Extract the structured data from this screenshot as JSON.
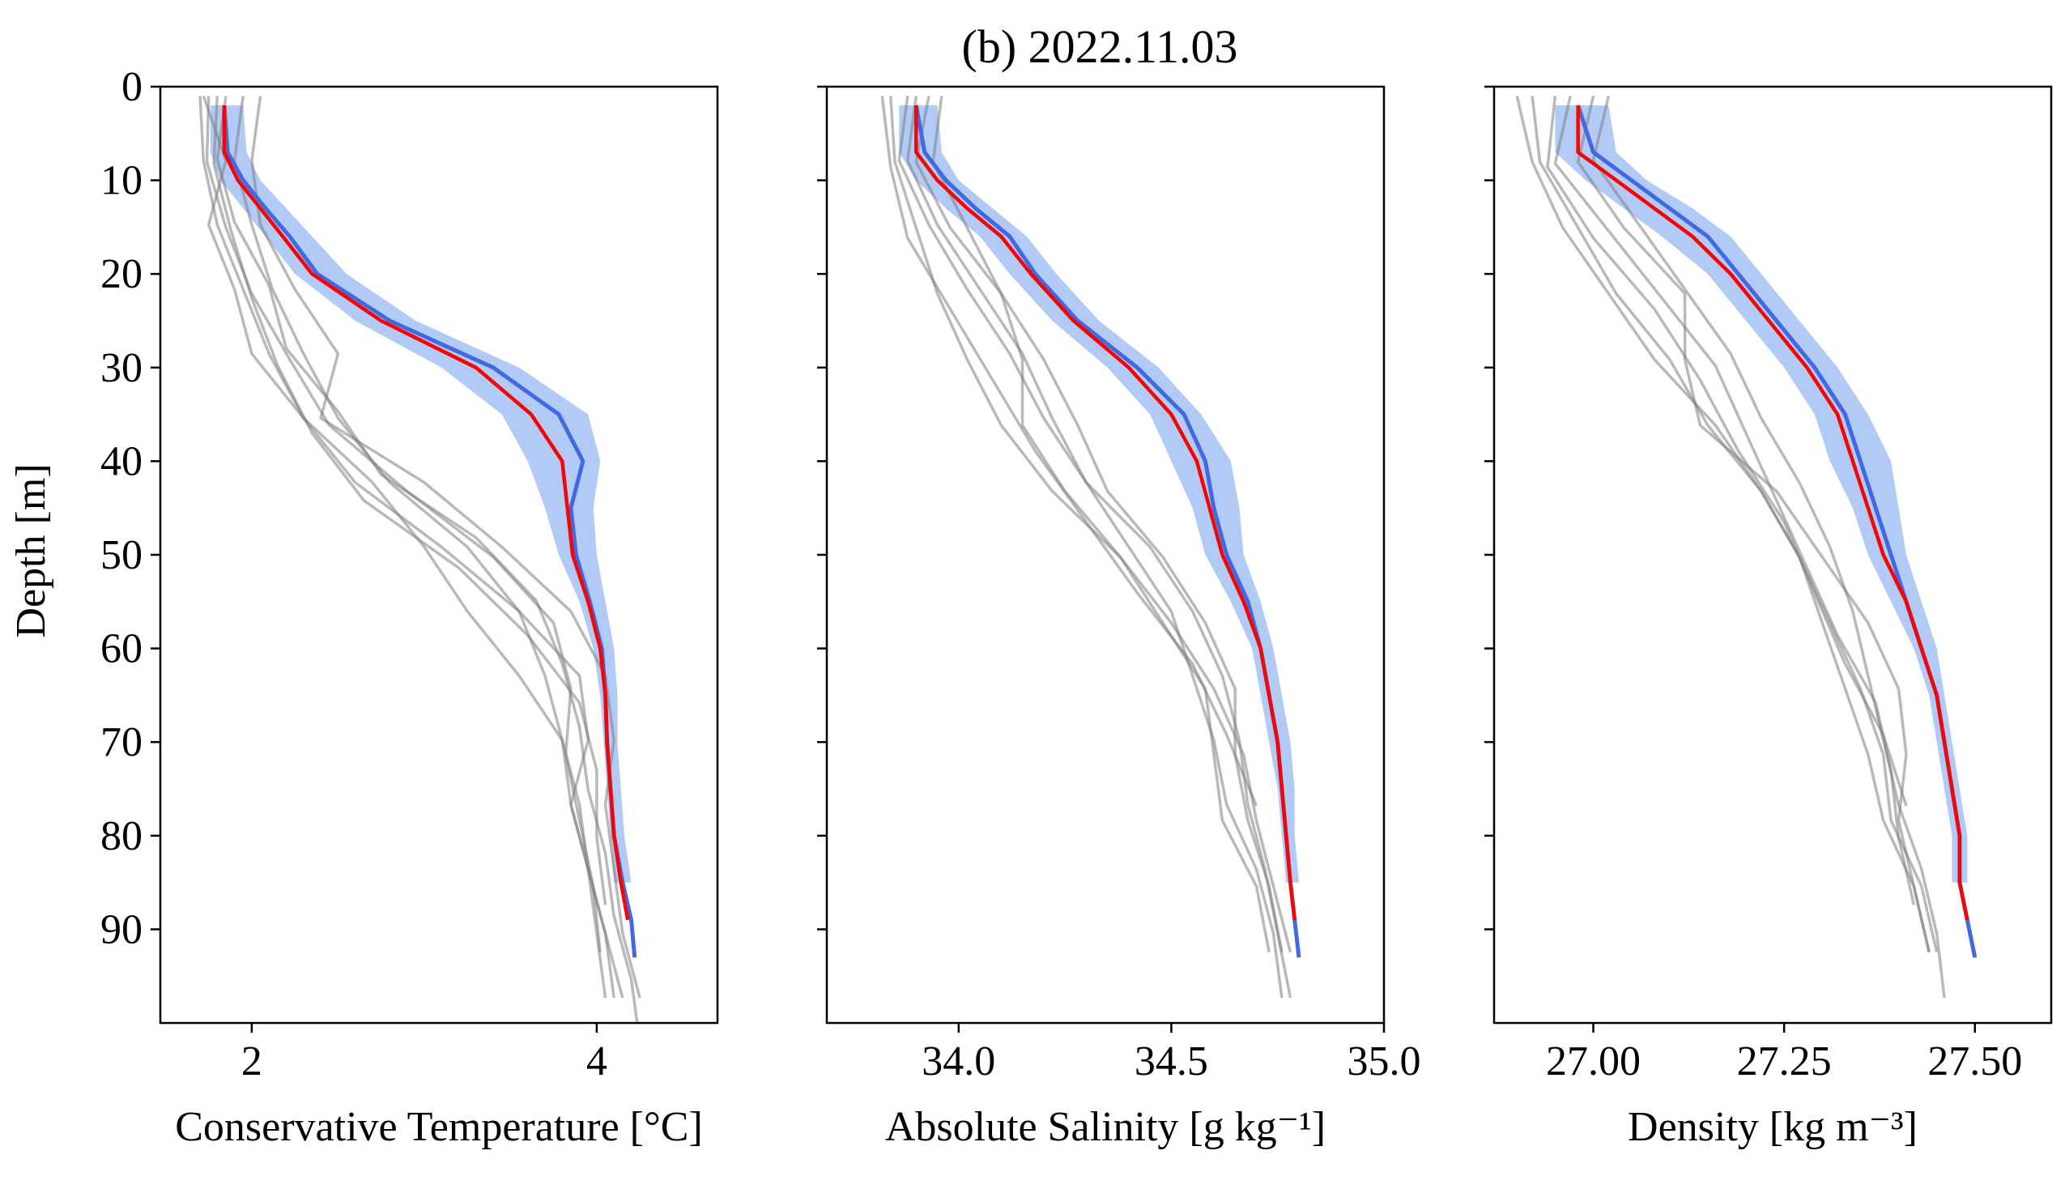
{
  "figure": {
    "title": "(b) 2022.11.03",
    "shared_ylabel": "Depth [m]"
  },
  "colors": {
    "mean_line": "#ff0000",
    "median_line": "#4169e1",
    "spread_fill": "#6495ed",
    "individual_profiles": "#808080",
    "axes": "#000000"
  },
  "chart_data": [
    {
      "type": "line",
      "panel": "temperature",
      "xlabel": "Conservative Temperature [°C]",
      "ylabel": "Depth [m]",
      "xlim": [
        1.47,
        4.7
      ],
      "ylim": [
        100,
        0
      ],
      "y_inverted": true,
      "xticks": [
        {
          "v": 2,
          "label": "2"
        },
        {
          "v": 4,
          "label": "4"
        }
      ],
      "yticks": [
        {
          "v": 0,
          "label": "0"
        },
        {
          "v": 10,
          "label": "10"
        },
        {
          "v": 20,
          "label": "20"
        },
        {
          "v": 30,
          "label": "30"
        },
        {
          "v": 40,
          "label": "40"
        },
        {
          "v": 50,
          "label": "50"
        },
        {
          "v": 60,
          "label": "60"
        },
        {
          "v": 70,
          "label": "70"
        },
        {
          "v": 80,
          "label": "80"
        },
        {
          "v": 90,
          "label": "90"
        }
      ],
      "depth": [
        2,
        7,
        10,
        13,
        16,
        20,
        25,
        30,
        35,
        40,
        45,
        50,
        55,
        60,
        65,
        70,
        75,
        80,
        85,
        89,
        93
      ],
      "mean": [
        1.84,
        1.84,
        1.92,
        2.05,
        2.18,
        2.35,
        2.75,
        3.3,
        3.62,
        3.8,
        3.83,
        3.86,
        3.95,
        4.02,
        4.05,
        4.06,
        4.08,
        4.1,
        4.14,
        4.18,
        null
      ],
      "median": [
        1.84,
        1.86,
        1.95,
        2.08,
        2.22,
        2.38,
        2.8,
        3.4,
        3.78,
        3.92,
        3.85,
        3.88,
        3.96,
        4.03,
        4.05,
        4.06,
        4.08,
        4.1,
        4.15,
        4.2,
        4.22
      ],
      "fill_low": [
        1.76,
        1.76,
        1.82,
        1.95,
        2.08,
        2.25,
        2.6,
        3.1,
        3.45,
        3.6,
        3.7,
        3.78,
        3.9,
        3.98,
        4.02,
        4.04,
        4.06,
        4.08,
        4.1
      ],
      "fill_high": [
        1.95,
        1.97,
        2.05,
        2.2,
        2.35,
        2.55,
        2.95,
        3.55,
        3.95,
        4.02,
        3.98,
        4.0,
        4.05,
        4.1,
        4.12,
        4.12,
        4.14,
        4.16,
        4.2
      ],
      "profiles": [
        {
          "d0": 1,
          "x": [
            1.7,
            1.72,
            1.8,
            1.95,
            2.1,
            2.3,
            2.6,
            3.1,
            3.55,
            3.9,
            3.95,
            3.85,
            3.95,
            4.0,
            4.05
          ]
        },
        {
          "d0": 1,
          "x": [
            1.75,
            1.74,
            1.85,
            2.0,
            2.22,
            2.45,
            2.9,
            3.4,
            3.75,
            3.85,
            3.82,
            3.9,
            3.98,
            4.02
          ]
        },
        {
          "d0": 1,
          "x": [
            1.85,
            1.8,
            1.9,
            2.1,
            2.2,
            2.5,
            2.75,
            3.3,
            3.65,
            3.8,
            3.9,
            3.95,
            4.05,
            4.1,
            4.2,
            4.25
          ]
        },
        {
          "d0": 1,
          "x": [
            1.95,
            1.9,
            2.0,
            2.12,
            2.3,
            2.5,
            2.8,
            3.25,
            3.55,
            3.7,
            3.8,
            3.9,
            3.95,
            4.05,
            4.15
          ]
        },
        {
          "d0": 1,
          "x": [
            2.05,
            2.0,
            2.05,
            2.25,
            2.5,
            2.4,
            3.0,
            3.45,
            3.85,
            4.05,
            4.1,
            4.05,
            4.1,
            4.15,
            4.25
          ]
        },
        {
          "d0": 1,
          "x": [
            1.72,
            1.85,
            1.75,
            1.9,
            2.0,
            2.3,
            2.7,
            3.0,
            3.25,
            3.55,
            3.8,
            3.85,
            3.95,
            4.05,
            4.1
          ]
        },
        {
          "d0": 1,
          "x": [
            1.8,
            1.78,
            1.88,
            2.0,
            2.15,
            2.35,
            2.65,
            3.2,
            3.6,
            3.9,
            4.0,
            4.0,
            4.05
          ]
        }
      ]
    },
    {
      "type": "line",
      "panel": "salinity",
      "xlabel": "Absolute Salinity [g kg⁻¹]",
      "ylabel": "",
      "xlim": [
        33.69,
        35.0
      ],
      "ylim": [
        100,
        0
      ],
      "y_inverted": true,
      "xticks": [
        {
          "v": 34.0,
          "label": "34.0"
        },
        {
          "v": 34.5,
          "label": "34.5"
        },
        {
          "v": 35.0,
          "label": "35.0"
        }
      ],
      "depth": [
        2,
        7,
        10,
        13,
        16,
        20,
        25,
        30,
        35,
        40,
        45,
        50,
        55,
        60,
        65,
        70,
        75,
        80,
        85,
        89,
        93
      ],
      "mean": [
        33.9,
        33.9,
        33.95,
        34.02,
        34.1,
        34.17,
        34.27,
        34.4,
        34.5,
        34.56,
        34.59,
        34.62,
        34.67,
        34.71,
        34.73,
        34.75,
        34.76,
        34.77,
        34.78,
        34.79,
        null
      ],
      "median": [
        33.9,
        33.92,
        33.97,
        34.04,
        34.12,
        34.18,
        34.28,
        34.42,
        34.53,
        34.58,
        34.6,
        34.63,
        34.68,
        34.71,
        34.73,
        34.75,
        34.76,
        34.77,
        34.78,
        34.79,
        34.8
      ],
      "fill_low": [
        33.86,
        33.86,
        33.9,
        33.97,
        34.05,
        34.12,
        34.22,
        34.35,
        34.45,
        34.5,
        34.55,
        34.58,
        34.64,
        34.69,
        34.71,
        34.73,
        34.75,
        34.76,
        34.77
      ],
      "fill_high": [
        33.95,
        33.96,
        34.0,
        34.08,
        34.16,
        34.23,
        34.33,
        34.47,
        34.57,
        34.64,
        34.66,
        34.67,
        34.71,
        34.74,
        34.76,
        34.78,
        34.79,
        34.79,
        34.8
      ],
      "profiles": [
        {
          "d0": 1,
          "x": [
            33.84,
            33.85,
            33.9,
            33.95,
            34.02,
            34.1,
            34.22,
            34.38,
            34.48,
            34.58,
            34.6,
            34.62,
            34.7,
            34.73
          ]
        },
        {
          "d0": 1,
          "x": [
            33.88,
            33.86,
            33.93,
            34.02,
            34.12,
            34.2,
            34.3,
            34.45,
            34.55,
            34.62,
            34.66,
            34.68,
            34.72,
            34.75,
            34.78
          ]
        },
        {
          "d0": 1,
          "x": [
            33.93,
            33.9,
            33.98,
            34.1,
            34.15,
            34.15,
            34.25,
            34.38,
            34.5,
            34.6,
            34.67,
            34.7,
            34.74,
            34.78
          ]
        },
        {
          "d0": 1,
          "x": [
            33.96,
            33.94,
            34.02,
            34.1,
            34.2,
            34.28,
            34.35,
            34.48,
            34.58,
            34.65,
            34.65,
            34.68,
            34.73,
            34.76
          ]
        },
        {
          "d0": 1,
          "x": [
            33.82,
            33.84,
            33.88,
            33.98,
            34.08,
            34.18,
            34.3,
            34.42,
            34.55,
            34.63,
            34.7
          ]
        },
        {
          "d0": 1,
          "x": [
            33.9,
            33.88,
            33.95,
            34.05,
            34.15,
            34.22,
            34.3,
            34.4,
            34.5,
            34.55,
            34.6,
            34.63,
            34.7,
            34.74,
            34.76
          ]
        }
      ]
    },
    {
      "type": "line",
      "panel": "density",
      "xlabel": "Density [kg m⁻³]",
      "ylabel": "",
      "xlim": [
        26.87,
        27.6
      ],
      "ylim": [
        100,
        0
      ],
      "y_inverted": true,
      "xticks": [
        {
          "v": 27.0,
          "label": "27.00"
        },
        {
          "v": 27.25,
          "label": "27.25"
        },
        {
          "v": 27.5,
          "label": "27.50"
        }
      ],
      "depth": [
        2,
        7,
        10,
        13,
        16,
        20,
        25,
        30,
        35,
        40,
        45,
        50,
        55,
        60,
        65,
        70,
        75,
        80,
        85,
        89,
        93
      ],
      "mean": [
        26.98,
        26.98,
        27.03,
        27.08,
        27.13,
        27.18,
        27.23,
        27.28,
        27.32,
        27.34,
        27.36,
        27.38,
        27.41,
        27.43,
        27.45,
        27.46,
        27.47,
        27.48,
        27.48,
        27.49,
        null
      ],
      "median": [
        26.98,
        27.0,
        27.05,
        27.1,
        27.15,
        27.19,
        27.24,
        27.29,
        27.33,
        27.35,
        27.37,
        27.39,
        27.41,
        27.43,
        27.45,
        27.46,
        27.47,
        27.48,
        27.48,
        27.49,
        27.5
      ],
      "fill_low": [
        26.95,
        26.95,
        26.99,
        27.04,
        27.09,
        27.15,
        27.2,
        27.25,
        27.29,
        27.31,
        27.34,
        27.36,
        27.39,
        27.42,
        27.44,
        27.45,
        27.46,
        27.47,
        27.47
      ],
      "fill_high": [
        27.02,
        27.03,
        27.07,
        27.13,
        27.18,
        27.22,
        27.27,
        27.32,
        27.36,
        27.39,
        27.4,
        27.41,
        27.43,
        27.45,
        27.46,
        27.47,
        27.48,
        27.49,
        27.49
      ],
      "profiles": [
        {
          "d0": 1,
          "x": [
            26.92,
            26.93,
            26.98,
            27.03,
            27.1,
            27.15,
            27.22,
            27.27,
            27.31,
            27.35,
            27.38,
            27.39,
            27.43,
            27.45
          ]
        },
        {
          "d0": 1,
          "x": [
            26.95,
            26.94,
            27.0,
            27.08,
            27.14,
            27.19,
            27.25,
            27.29,
            27.33,
            27.38,
            27.41
          ]
        },
        {
          "d0": 1,
          "x": [
            27.0,
            26.98,
            27.04,
            27.12,
            27.12,
            27.14,
            27.24,
            27.3,
            27.36,
            27.4,
            27.41,
            27.4,
            27.42,
            27.44
          ]
        },
        {
          "d0": 1,
          "x": [
            27.02,
            27.0,
            27.06,
            27.12,
            27.18,
            27.22,
            27.27,
            27.31,
            27.34,
            27.36,
            27.38,
            27.4,
            27.43,
            27.45,
            27.46
          ]
        },
        {
          "d0": 1,
          "x": [
            26.9,
            26.92,
            26.96,
            27.02,
            27.08,
            27.16,
            27.22,
            27.27,
            27.3,
            27.33,
            27.36,
            27.38,
            27.42,
            27.44
          ]
        },
        {
          "d0": 1,
          "x": [
            26.97,
            26.95,
            27.02,
            27.09,
            27.16,
            27.2,
            27.24,
            27.28,
            27.32,
            27.37,
            27.39,
            27.4,
            27.42
          ]
        }
      ]
    }
  ]
}
